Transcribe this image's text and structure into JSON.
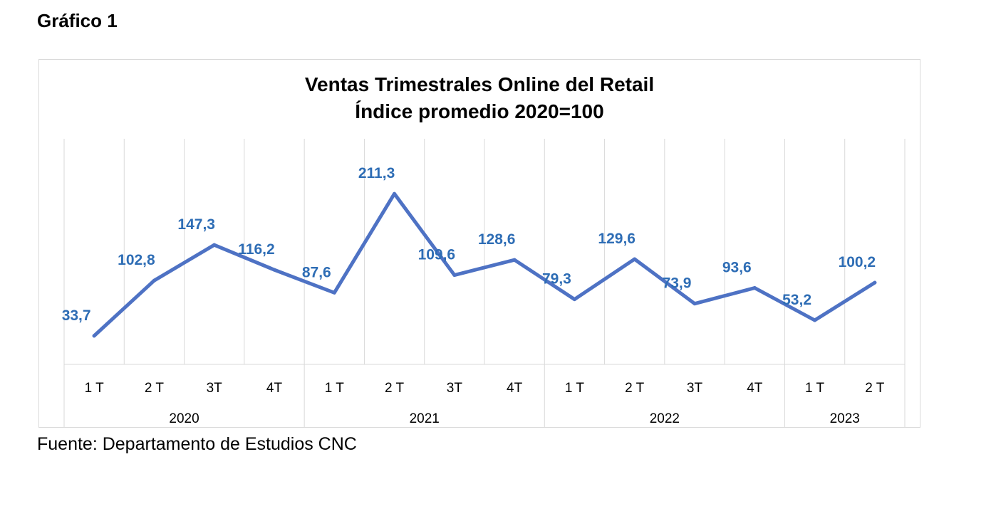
{
  "figure_label": "Gráfico 1",
  "source": "Fuente: Departamento de Estudios CNC",
  "chart_data": {
    "type": "line",
    "title": [
      "Ventas Trimestrales Online del Retail",
      "Índice promedio 2020=100"
    ],
    "categories": [
      "1 T",
      "2 T",
      "3T",
      "4T",
      "1 T",
      "2 T",
      "3T",
      "4T",
      "1 T",
      "2 T",
      "3T",
      "4T",
      "1 T",
      "2 T"
    ],
    "groups": [
      {
        "label": "2020",
        "count": 4
      },
      {
        "label": "2021",
        "count": 4
      },
      {
        "label": "2022",
        "count": 4
      },
      {
        "label": "2023",
        "count": 2
      }
    ],
    "series": [
      {
        "values": [
          33.7,
          102.8,
          147.3,
          116.2,
          87.6,
          211.3,
          109.6,
          128.6,
          79.3,
          129.6,
          73.9,
          93.6,
          53.2,
          100.2
        ],
        "data_labels": [
          "33,7",
          "102,8",
          "147,3",
          "116,2",
          "87,6",
          "211,3",
          "109,6",
          "128,6",
          "79,3",
          "129,6",
          "73,9",
          "93,6",
          "53,2",
          "100,2"
        ],
        "color": "#4e72c4"
      }
    ],
    "label_color": "#2e6db5",
    "ylim": [
      -2,
      280
    ],
    "grid": "vertical",
    "legend": "none"
  }
}
